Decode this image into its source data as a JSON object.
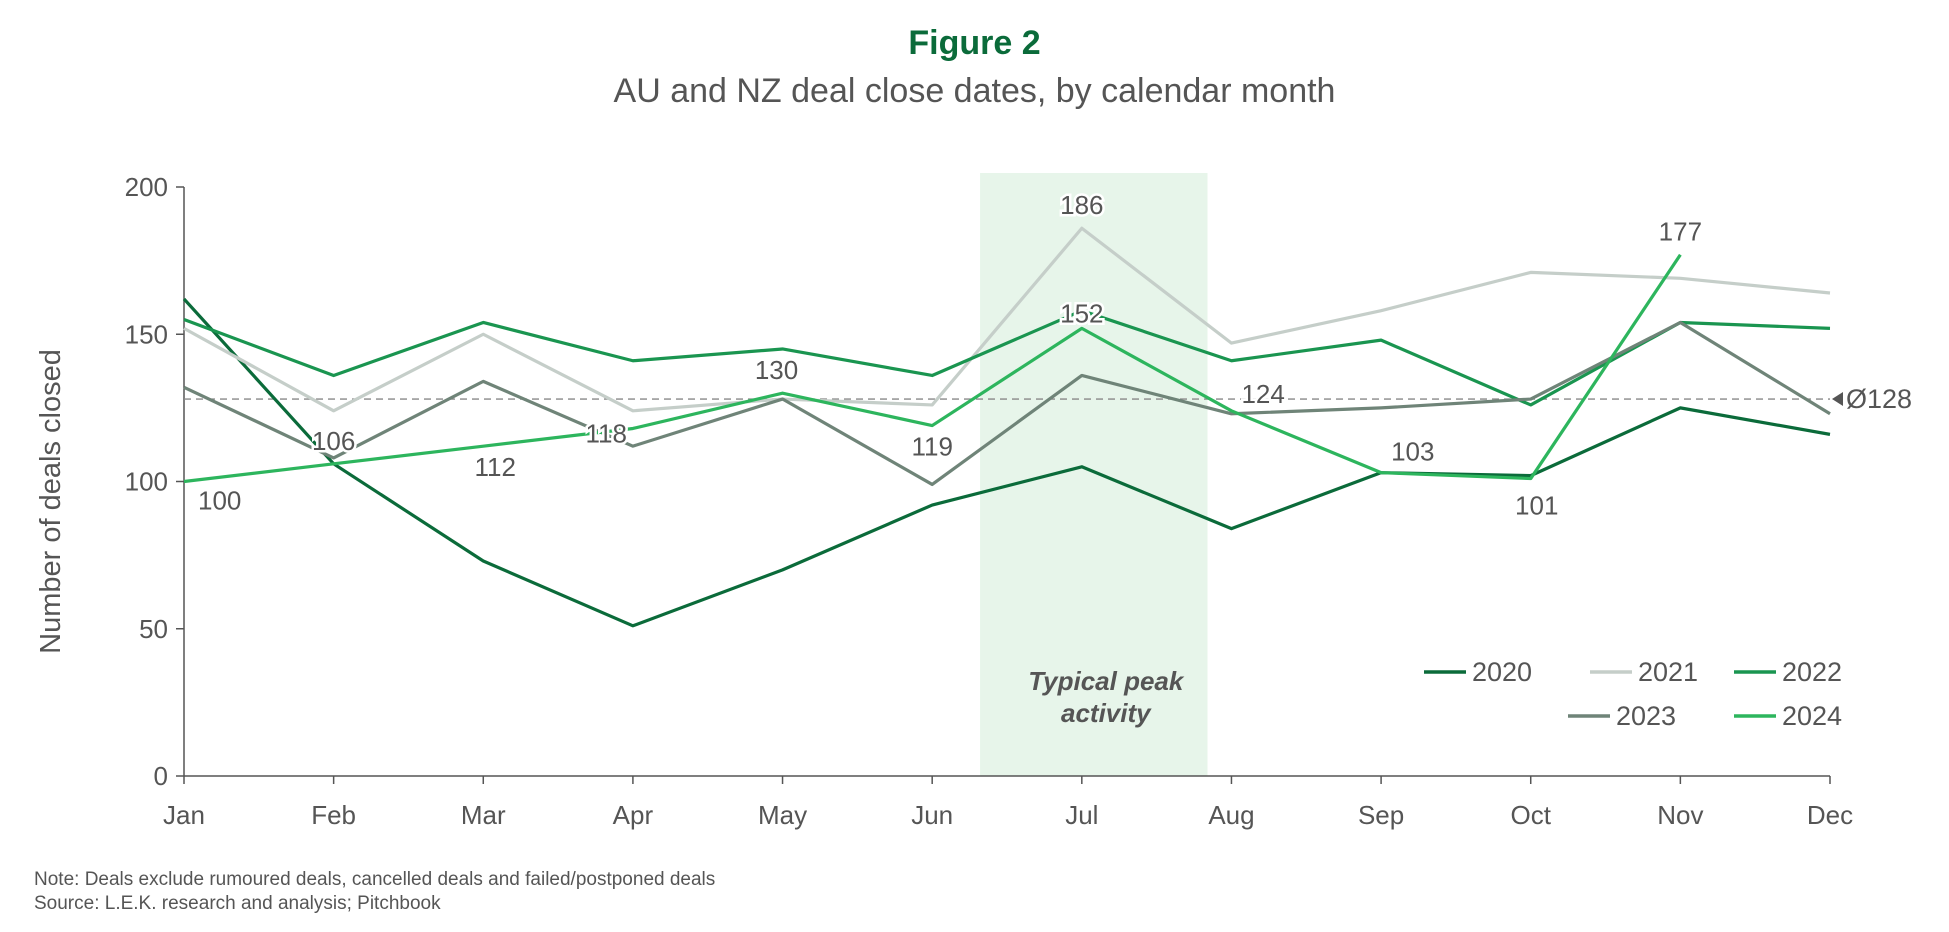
{
  "figure_label": "Figure 2",
  "title": "AU and NZ deal close dates, by calendar month",
  "note": "Note: Deals exclude rumoured deals, cancelled deals and failed/postponed deals",
  "source": "Source: L.E.K. research and analysis; Pitchbook",
  "chart_data": {
    "type": "line",
    "categories": [
      "Jan",
      "Feb",
      "Mar",
      "Apr",
      "May",
      "Jun",
      "Jul",
      "Aug",
      "Sep",
      "Oct",
      "Nov",
      "Dec"
    ],
    "ylabel": "Number of deals closed",
    "xlabel": "",
    "ylim": [
      0,
      200
    ],
    "yticks": [
      "0",
      "50",
      "100",
      "150",
      "200"
    ],
    "grid": false,
    "legend_position": "bottom-right",
    "series": [
      {
        "name": "2020",
        "color": "#0b6b3a",
        "values": [
          162,
          106,
          73,
          51,
          70,
          92,
          105,
          84,
          103,
          102,
          125,
          116
        ]
      },
      {
        "name": "2021",
        "color": "#c5cec9",
        "values": [
          152,
          124,
          150,
          124,
          128,
          126,
          186,
          147,
          158,
          171,
          169,
          164
        ]
      },
      {
        "name": "2022",
        "color": "#1a9550",
        "values": [
          155,
          136,
          154,
          141,
          145,
          136,
          158,
          141,
          148,
          126,
          154,
          152
        ]
      },
      {
        "name": "2023",
        "color": "#6f8478",
        "values": [
          132,
          108,
          134,
          112,
          128,
          99,
          136,
          123,
          125,
          128,
          154,
          123
        ]
      },
      {
        "name": "2024",
        "color": "#2db55d",
        "values": [
          100,
          106,
          112,
          118,
          130,
          119,
          152,
          124,
          103,
          101,
          177,
          null
        ]
      }
    ],
    "data_labels": [
      {
        "month": "Jan",
        "value": 100,
        "text": "100"
      },
      {
        "month": "Feb",
        "value": 106,
        "text": "106"
      },
      {
        "month": "Mar",
        "value": 112,
        "text": "112"
      },
      {
        "month": "Apr",
        "value": 118,
        "text": "118"
      },
      {
        "month": "May",
        "value": 130,
        "text": "130"
      },
      {
        "month": "Jun",
        "value": 119,
        "text": "119"
      },
      {
        "month": "Jul",
        "value": 186,
        "text": "186"
      },
      {
        "month": "Jul",
        "value": 152,
        "text": "152"
      },
      {
        "month": "Aug",
        "value": 124,
        "text": "124"
      },
      {
        "month": "Sep",
        "value": 103,
        "text": "103"
      },
      {
        "month": "Oct",
        "value": 101,
        "text": "101"
      },
      {
        "month": "Nov",
        "value": 177,
        "text": "177"
      }
    ],
    "average": {
      "value": 128,
      "label": "Ø128",
      "color": "#888888"
    },
    "highlight_band": {
      "from_month": "Jun",
      "to_month": "Aug",
      "start_offset": 0.32,
      "end_offset": 0.84,
      "color": "#e7f5ea",
      "label_line1": "Typical peak",
      "label_line2": "activity"
    }
  }
}
